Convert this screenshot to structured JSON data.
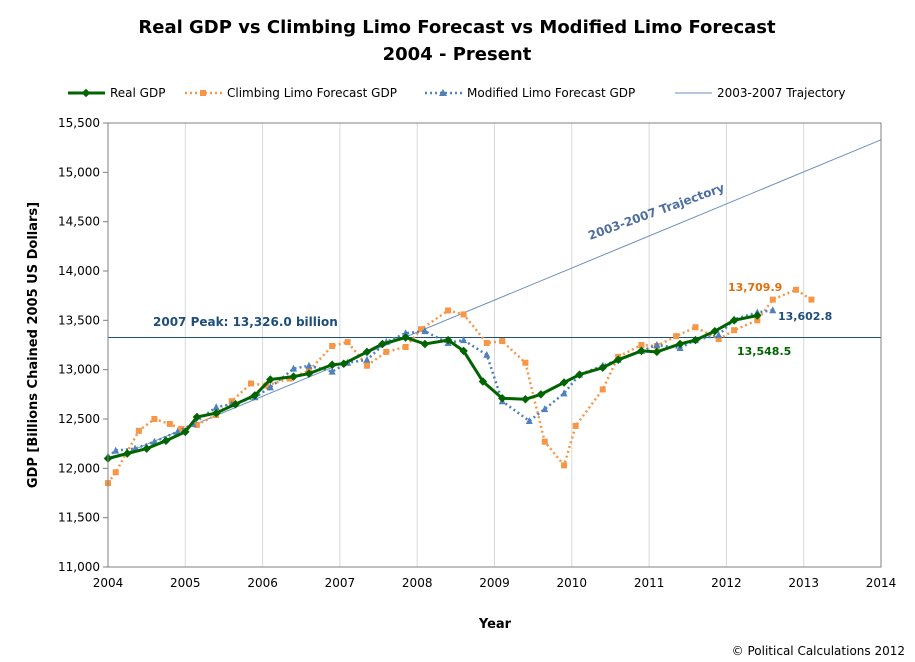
{
  "chart_data": {
    "type": "line",
    "title_line1": "Real GDP vs Climbing Limo Forecast vs Modified Limo Forecast",
    "title_line2": "2004 - Present",
    "xlabel": "Year",
    "ylabel": "GDP [Billions Chained 2005 US Dollars]",
    "xlim": [
      2004,
      2014
    ],
    "ylim": [
      11000,
      15500
    ],
    "x_ticks": [
      "2004",
      "2005",
      "2006",
      "2007",
      "2008",
      "2009",
      "2010",
      "2011",
      "2012",
      "2013",
      "2014"
    ],
    "y_ticks": [
      "11,000",
      "11,500",
      "12,000",
      "12,500",
      "13,000",
      "13,500",
      "14,000",
      "14,500",
      "15,000",
      "15,500"
    ],
    "grid": "vertical",
    "legend_position": "top",
    "series": [
      {
        "name": "Real GDP",
        "color": "#006400",
        "style": "solid-diamond",
        "points": [
          [
            2004.0,
            12100
          ],
          [
            2004.25,
            12150
          ],
          [
            2004.5,
            12200
          ],
          [
            2004.75,
            12280
          ],
          [
            2005.0,
            12370
          ],
          [
            2005.15,
            12520
          ],
          [
            2005.4,
            12560
          ],
          [
            2005.65,
            12650
          ],
          [
            2005.9,
            12740
          ],
          [
            2006.1,
            12900
          ],
          [
            2006.4,
            12930
          ],
          [
            2006.6,
            12960
          ],
          [
            2006.9,
            13050
          ],
          [
            2007.05,
            13060
          ],
          [
            2007.35,
            13180
          ],
          [
            2007.55,
            13260
          ],
          [
            2007.85,
            13326
          ],
          [
            2008.1,
            13260
          ],
          [
            2008.4,
            13300
          ],
          [
            2008.6,
            13190
          ],
          [
            2008.85,
            12880
          ],
          [
            2009.1,
            12710
          ],
          [
            2009.4,
            12700
          ],
          [
            2009.6,
            12750
          ],
          [
            2009.9,
            12870
          ],
          [
            2010.1,
            12950
          ],
          [
            2010.4,
            13020
          ],
          [
            2010.6,
            13100
          ],
          [
            2010.9,
            13190
          ],
          [
            2011.1,
            13180
          ],
          [
            2011.4,
            13260
          ],
          [
            2011.6,
            13300
          ],
          [
            2011.85,
            13390
          ],
          [
            2012.1,
            13500
          ],
          [
            2012.4,
            13548.5
          ]
        ]
      },
      {
        "name": "Climbing Limo Forecast GDP",
        "color": "#F79646",
        "style": "dotted-square",
        "points": [
          [
            2004.0,
            11850
          ],
          [
            2004.1,
            11960
          ],
          [
            2004.4,
            12380
          ],
          [
            2004.6,
            12500
          ],
          [
            2004.8,
            12450
          ],
          [
            2004.95,
            12400
          ],
          [
            2005.15,
            12440
          ],
          [
            2005.4,
            12540
          ],
          [
            2005.6,
            12680
          ],
          [
            2005.85,
            12860
          ],
          [
            2006.05,
            12840
          ],
          [
            2006.35,
            12910
          ],
          [
            2006.6,
            12990
          ],
          [
            2006.9,
            13240
          ],
          [
            2007.1,
            13280
          ],
          [
            2007.35,
            13040
          ],
          [
            2007.6,
            13180
          ],
          [
            2007.85,
            13230
          ],
          [
            2008.05,
            13410
          ],
          [
            2008.4,
            13600
          ],
          [
            2008.6,
            13560
          ],
          [
            2008.9,
            13270
          ],
          [
            2009.1,
            13290
          ],
          [
            2009.4,
            13070
          ],
          [
            2009.65,
            12270
          ],
          [
            2009.9,
            12030
          ],
          [
            2010.05,
            12430
          ],
          [
            2010.4,
            12800
          ],
          [
            2010.6,
            13130
          ],
          [
            2010.9,
            13250
          ],
          [
            2011.1,
            13240
          ],
          [
            2011.35,
            13340
          ],
          [
            2011.6,
            13430
          ],
          [
            2011.9,
            13310
          ],
          [
            2012.1,
            13400
          ],
          [
            2012.4,
            13500
          ],
          [
            2012.6,
            13710
          ],
          [
            2012.9,
            13810
          ],
          [
            2013.1,
            13709.9
          ]
        ]
      },
      {
        "name": "Modified Limo Forecast GDP",
        "color": "#4F81BD",
        "style": "dotted-triangle",
        "points": [
          [
            2004.0,
            12120
          ],
          [
            2004.1,
            12180
          ],
          [
            2004.35,
            12200
          ],
          [
            2004.6,
            12270
          ],
          [
            2004.9,
            12370
          ],
          [
            2005.1,
            12450
          ],
          [
            2005.4,
            12620
          ],
          [
            2005.6,
            12650
          ],
          [
            2005.9,
            12720
          ],
          [
            2006.1,
            12820
          ],
          [
            2006.4,
            13010
          ],
          [
            2006.6,
            13040
          ],
          [
            2006.9,
            12980
          ],
          [
            2007.1,
            13070
          ],
          [
            2007.35,
            13100
          ],
          [
            2007.6,
            13280
          ],
          [
            2007.85,
            13370
          ],
          [
            2008.1,
            13390
          ],
          [
            2008.4,
            13270
          ],
          [
            2008.6,
            13300
          ],
          [
            2008.9,
            13150
          ],
          [
            2009.1,
            12680
          ],
          [
            2009.45,
            12480
          ],
          [
            2009.65,
            12600
          ],
          [
            2009.9,
            12760
          ],
          [
            2010.1,
            12950
          ],
          [
            2010.4,
            13040
          ],
          [
            2010.6,
            13100
          ],
          [
            2010.9,
            13190
          ],
          [
            2011.1,
            13250
          ],
          [
            2011.4,
            13220
          ],
          [
            2011.6,
            13300
          ],
          [
            2011.9,
            13350
          ],
          [
            2012.1,
            13510
          ],
          [
            2012.4,
            13580
          ],
          [
            2012.6,
            13602.8
          ]
        ]
      },
      {
        "name": "2003-2007 Trajectory",
        "color": "#6F8FBF",
        "style": "thin-line",
        "points": [
          [
            2004.0,
            12080
          ],
          [
            2014.0,
            15330
          ]
        ]
      }
    ],
    "reference_line": {
      "value": 13326,
      "label": "2007 Peak: 13,326.0 billion"
    },
    "annotations": {
      "trajectory_label": "2003-2007 Trajectory",
      "climbing_end": "13,709.9",
      "modified_end": "13,602.8",
      "real_end": "13,548.5"
    },
    "copyright": "© Political Calculations 2012"
  }
}
